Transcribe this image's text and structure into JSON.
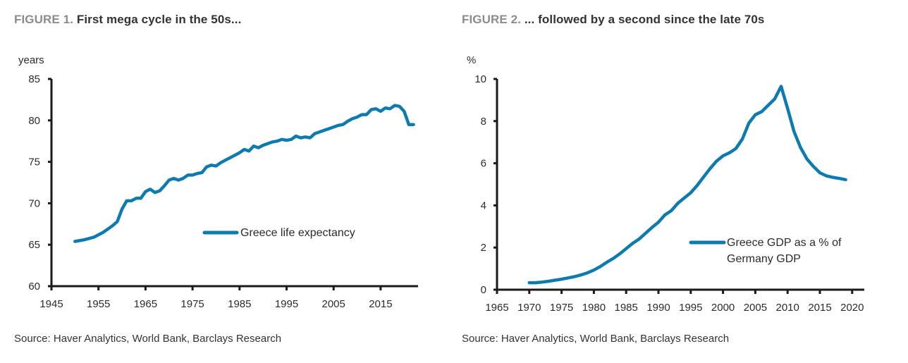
{
  "figures": [
    {
      "number_label": "FIGURE 1.",
      "title": "First mega cycle in the 50s...",
      "source": "Source: Haver Analytics, World Bank, Barclays Research"
    },
    {
      "number_label": "FIGURE 2.",
      "title": "... followed by a second since the late 70s",
      "source": "Source: Haver Analytics, World Bank, Barclays Research"
    }
  ],
  "chart_data": [
    {
      "type": "line",
      "title": "FIGURE 1. First mega cycle in the 50s...",
      "xlabel": "",
      "ylabel": "years",
      "xlim": [
        1945,
        2024
      ],
      "ylim": [
        60,
        85
      ],
      "xticks": [
        1945,
        1955,
        1965,
        1975,
        1985,
        1995,
        2005,
        2015
      ],
      "yticks": [
        60,
        65,
        70,
        75,
        80,
        85
      ],
      "grid": false,
      "legend_position": "center-right",
      "color": "#0e7bb0",
      "series": [
        {
          "name": "Greece life expectancy",
          "x": [
            1950,
            1952,
            1954,
            1956,
            1958,
            1959,
            1960,
            1961,
            1962,
            1963,
            1964,
            1965,
            1966,
            1967,
            1968,
            1969,
            1970,
            1971,
            1972,
            1973,
            1974,
            1975,
            1976,
            1977,
            1978,
            1979,
            1980,
            1981,
            1982,
            1983,
            1984,
            1985,
            1986,
            1987,
            1988,
            1989,
            1990,
            1991,
            1992,
            1993,
            1994,
            1995,
            1996,
            1997,
            1998,
            1999,
            2000,
            2001,
            2002,
            2003,
            2004,
            2005,
            2006,
            2007,
            2008,
            2009,
            2010,
            2011,
            2012,
            2013,
            2014,
            2015,
            2016,
            2017,
            2018,
            2019,
            2020,
            2021,
            2022
          ],
          "values": [
            65.4,
            65.6,
            65.9,
            66.5,
            67.3,
            67.8,
            69.3,
            70.3,
            70.3,
            70.6,
            70.6,
            71.4,
            71.7,
            71.3,
            71.5,
            72.1,
            72.8,
            73.0,
            72.8,
            73.0,
            73.4,
            73.4,
            73.6,
            73.7,
            74.4,
            74.6,
            74.5,
            74.9,
            75.2,
            75.5,
            75.8,
            76.1,
            76.5,
            76.3,
            76.9,
            76.7,
            77.0,
            77.2,
            77.4,
            77.5,
            77.7,
            77.6,
            77.7,
            78.1,
            77.9,
            78.0,
            77.9,
            78.4,
            78.6,
            78.8,
            79.0,
            79.2,
            79.4,
            79.5,
            79.9,
            80.2,
            80.4,
            80.7,
            80.7,
            81.3,
            81.4,
            81.1,
            81.5,
            81.4,
            81.8,
            81.7,
            81.1,
            79.5,
            79.5
          ]
        }
      ]
    },
    {
      "type": "line",
      "title": "FIGURE 2. ... followed by a second since the late 70s",
      "xlabel": "",
      "ylabel": "%",
      "xlim": [
        1965,
        2023
      ],
      "ylim": [
        0,
        10
      ],
      "xticks": [
        1965,
        1970,
        1975,
        1980,
        1985,
        1990,
        1995,
        2000,
        2005,
        2010,
        2015,
        2020
      ],
      "yticks": [
        0,
        2,
        4,
        6,
        8,
        10
      ],
      "grid": false,
      "legend_position": "lower-right",
      "color": "#0e7bb0",
      "series": [
        {
          "name": "Greece GDP as a % of Germany GDP",
          "legend_lines": [
            "Greece GDP as a % of",
            "Germany GDP"
          ],
          "x": [
            1970,
            1971,
            1972,
            1973,
            1974,
            1975,
            1976,
            1977,
            1978,
            1979,
            1980,
            1981,
            1982,
            1983,
            1984,
            1985,
            1986,
            1987,
            1988,
            1989,
            1990,
            1991,
            1992,
            1993,
            1994,
            1995,
            1996,
            1997,
            1998,
            1999,
            2000,
            2001,
            2002,
            2003,
            2004,
            2005,
            2006,
            2007,
            2008,
            2009,
            2010,
            2011,
            2012,
            2013,
            2014,
            2015,
            2016,
            2017,
            2018,
            2019
          ],
          "values": [
            0.33,
            0.33,
            0.36,
            0.4,
            0.45,
            0.5,
            0.56,
            0.62,
            0.7,
            0.8,
            0.93,
            1.1,
            1.3,
            1.48,
            1.7,
            1.95,
            2.2,
            2.4,
            2.68,
            2.95,
            3.2,
            3.55,
            3.75,
            4.1,
            4.35,
            4.6,
            4.95,
            5.35,
            5.75,
            6.1,
            6.35,
            6.5,
            6.7,
            7.15,
            7.9,
            8.3,
            8.45,
            8.75,
            9.05,
            9.65,
            8.6,
            7.5,
            6.75,
            6.2,
            5.85,
            5.55,
            5.4,
            5.33,
            5.28,
            5.22
          ]
        }
      ]
    }
  ]
}
